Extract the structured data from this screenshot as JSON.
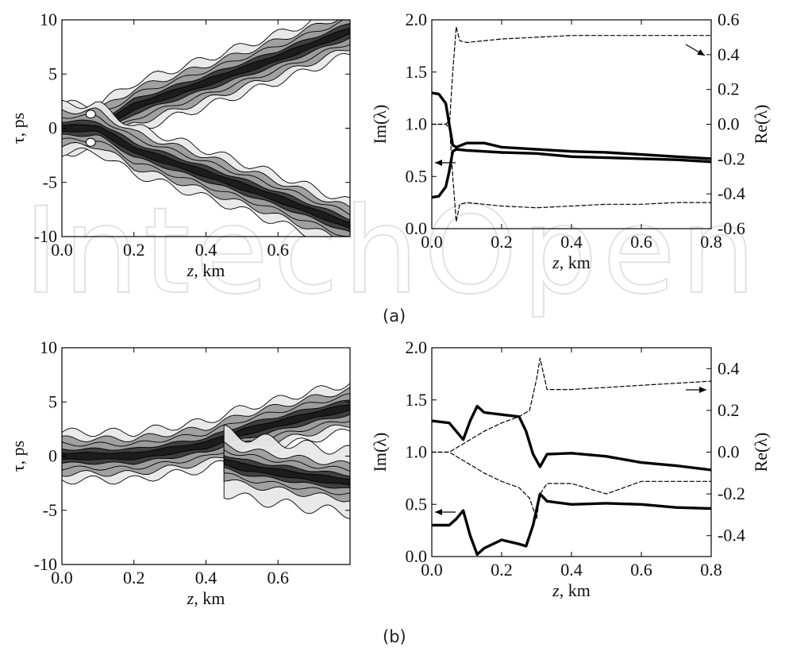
{
  "captions": {
    "a": "(a)",
    "b": "(b)"
  },
  "watermark_text": "IntechOpen",
  "colors": {
    "line": "#000000",
    "fill_light": "#e8e8e8",
    "fill_mid": "#9c9c9c",
    "fill_dark": "#3a3a3a",
    "watermark": "#e2e2e2"
  },
  "chart_data": [
    {
      "id": "a-left",
      "type": "heatmap",
      "xlabel": "z, km",
      "ylabel": "τ, ps",
      "xlim": [
        0.0,
        0.8
      ],
      "ylim": [
        -10,
        10
      ],
      "xticks": [
        "0.0",
        "0.2",
        "0.4",
        "0.6"
      ],
      "yticks": [
        "-10",
        "-5",
        "0",
        "5",
        "10"
      ],
      "description_series": [
        {
          "name": "",
          "z": [
            0.0,
            0.05,
            0.1,
            0.2,
            0.4,
            0.6,
            0.8
          ],
          "tau": [
            0.0,
            0.0,
            0.0,
            2.0,
            4.2,
            6.5,
            9.0
          ]
        },
        {
          "name": "",
          "z": [
            0.0,
            0.05,
            0.1,
            0.2,
            0.4,
            0.6,
            0.8
          ],
          "tau": [
            0.0,
            0.0,
            0.0,
            -2.0,
            -4.2,
            -6.5,
            -9.0
          ]
        }
      ]
    },
    {
      "id": "a-right",
      "type": "line",
      "xlabel": "z, km",
      "ylabel": "Im(λ)",
      "ylabel_right": "Re(λ)",
      "xlim": [
        0.0,
        0.8
      ],
      "ylim": [
        0.0,
        2.0
      ],
      "ylim_right": [
        -0.6,
        0.6
      ],
      "xticks": [
        "0.0",
        "0.2",
        "0.4",
        "0.6",
        "0.8"
      ],
      "yticks": [
        "0.0",
        "0.5",
        "1.0",
        "1.5",
        "2.0"
      ],
      "yticks_right": [
        "-0.6",
        "-0.4",
        "-0.2",
        "0.0",
        "0.2",
        "0.4",
        "0.6"
      ],
      "series": [
        {
          "axis": "left",
          "style": "solid",
          "x": [
            0.0,
            0.02,
            0.04,
            0.05,
            0.06,
            0.07,
            0.1,
            0.15,
            0.2,
            0.3,
            0.4,
            0.5,
            0.6,
            0.7,
            0.8
          ],
          "y": [
            1.3,
            1.29,
            1.2,
            1.0,
            0.8,
            0.78,
            0.82,
            0.82,
            0.78,
            0.76,
            0.74,
            0.73,
            0.71,
            0.69,
            0.67
          ]
        },
        {
          "axis": "left",
          "style": "solid",
          "x": [
            0.0,
            0.02,
            0.04,
            0.05,
            0.06,
            0.07,
            0.1,
            0.15,
            0.2,
            0.3,
            0.4,
            0.5,
            0.6,
            0.7,
            0.8
          ],
          "y": [
            0.3,
            0.31,
            0.4,
            0.55,
            0.74,
            0.76,
            0.75,
            0.74,
            0.73,
            0.72,
            0.69,
            0.68,
            0.67,
            0.66,
            0.64
          ]
        },
        {
          "axis": "right",
          "style": "dashed",
          "x": [
            0.0,
            0.04,
            0.05,
            0.06,
            0.07,
            0.08,
            0.1,
            0.2,
            0.3,
            0.4,
            0.5,
            0.6,
            0.7,
            0.8
          ],
          "y": [
            0.0,
            0.0,
            -0.02,
            0.3,
            0.56,
            0.48,
            0.47,
            0.49,
            0.5,
            0.51,
            0.51,
            0.51,
            0.51,
            0.51
          ]
        },
        {
          "axis": "right",
          "style": "dashed",
          "x": [
            0.0,
            0.04,
            0.05,
            0.06,
            0.07,
            0.08,
            0.1,
            0.2,
            0.3,
            0.4,
            0.5,
            0.6,
            0.7,
            0.8
          ],
          "y": [
            0.0,
            0.0,
            0.02,
            -0.3,
            -0.56,
            -0.46,
            -0.45,
            -0.47,
            -0.48,
            -0.47,
            -0.46,
            -0.46,
            -0.45,
            -0.45
          ]
        }
      ]
    },
    {
      "id": "b-left",
      "type": "heatmap",
      "xlabel": "z, km",
      "ylabel": "τ, ps",
      "xlim": [
        0.0,
        0.8
      ],
      "ylim": [
        -10,
        10
      ],
      "xticks": [
        "0.0",
        "0.2",
        "0.4",
        "0.6"
      ],
      "yticks": [
        "-10",
        "-5",
        "0",
        "5",
        "10"
      ],
      "description_series": [
        {
          "name": "",
          "z": [
            0.0,
            0.1,
            0.2,
            0.3,
            0.4,
            0.5,
            0.6,
            0.7,
            0.8
          ],
          "tau": [
            0.0,
            0.0,
            0.0,
            0.5,
            1.0,
            2.2,
            3.0,
            3.8,
            4.5
          ]
        },
        {
          "name": "",
          "z": [
            0.45,
            0.5,
            0.6,
            0.7,
            0.8
          ],
          "tau": [
            -0.5,
            -1.0,
            -1.5,
            -2.0,
            -2.4
          ]
        }
      ]
    },
    {
      "id": "b-right",
      "type": "line",
      "xlabel": "z, km",
      "ylabel": "Im(λ)",
      "ylabel_right": "Re(λ)",
      "xlim": [
        0.0,
        0.8
      ],
      "ylim": [
        0.0,
        2.0
      ],
      "ylim_right": [
        -0.5,
        0.5
      ],
      "xticks": [
        "0.0",
        "0.2",
        "0.4",
        "0.6",
        "0.8"
      ],
      "yticks": [
        "0.0",
        "0.5",
        "1.0",
        "1.5",
        "2.0"
      ],
      "yticks_right": [
        "-0.4",
        "-0.2",
        "0.0",
        "0.2",
        "0.4"
      ],
      "series": [
        {
          "axis": "left",
          "style": "solid",
          "x": [
            0.0,
            0.05,
            0.07,
            0.09,
            0.11,
            0.13,
            0.15,
            0.2,
            0.25,
            0.27,
            0.29,
            0.31,
            0.33,
            0.4,
            0.5,
            0.6,
            0.7,
            0.8
          ],
          "y": [
            1.3,
            1.28,
            1.2,
            1.12,
            1.3,
            1.44,
            1.38,
            1.36,
            1.34,
            1.2,
            0.98,
            0.86,
            0.98,
            0.99,
            0.96,
            0.9,
            0.87,
            0.83
          ]
        },
        {
          "axis": "left",
          "style": "solid",
          "x": [
            0.0,
            0.05,
            0.07,
            0.09,
            0.11,
            0.13,
            0.15,
            0.2,
            0.25,
            0.27,
            0.29,
            0.31,
            0.33,
            0.4,
            0.5,
            0.6,
            0.7,
            0.8
          ],
          "y": [
            0.3,
            0.3,
            0.36,
            0.44,
            0.2,
            0.02,
            0.08,
            0.16,
            0.12,
            0.1,
            0.3,
            0.6,
            0.53,
            0.5,
            0.51,
            0.5,
            0.47,
            0.46
          ]
        },
        {
          "axis": "right",
          "style": "dashed",
          "x": [
            0.0,
            0.05,
            0.08,
            0.1,
            0.15,
            0.2,
            0.25,
            0.28,
            0.3,
            0.31,
            0.33,
            0.4,
            0.5,
            0.6,
            0.7,
            0.8
          ],
          "y": [
            0.0,
            0.0,
            0.03,
            0.05,
            0.1,
            0.14,
            0.17,
            0.2,
            0.35,
            0.45,
            0.3,
            0.3,
            0.31,
            0.32,
            0.33,
            0.34
          ]
        },
        {
          "axis": "right",
          "style": "dashed",
          "x": [
            0.0,
            0.05,
            0.08,
            0.1,
            0.15,
            0.2,
            0.25,
            0.28,
            0.3,
            0.31,
            0.33,
            0.4,
            0.5,
            0.6,
            0.7,
            0.8
          ],
          "y": [
            0.0,
            0.0,
            -0.03,
            -0.05,
            -0.1,
            -0.14,
            -0.17,
            -0.22,
            -0.32,
            -0.2,
            -0.15,
            -0.15,
            -0.2,
            -0.14,
            -0.14,
            -0.14
          ]
        }
      ]
    }
  ]
}
